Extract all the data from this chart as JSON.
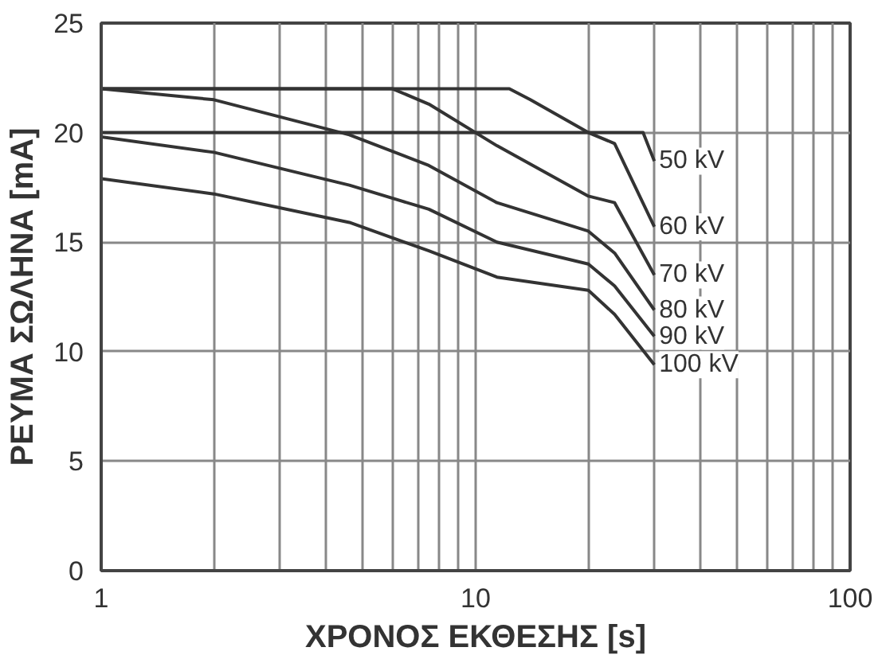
{
  "chart_data": {
    "type": "line",
    "xlabel": "ΧΡΟΝΟΣ ΕΚΘΕΣΗΣ [s]",
    "ylabel": "ΡΕΥΜΑ ΣΩΛΗΝΑ [mA]",
    "log": "x",
    "grid": true,
    "xlim": [
      1,
      100
    ],
    "ylim": [
      0,
      25
    ],
    "xticks": [
      1,
      {
        "value": 2,
        "label": null
      },
      {
        "value": 3,
        "label": null
      },
      {
        "value": 4,
        "label": null
      },
      {
        "value": 5,
        "label": null
      },
      {
        "value": 6,
        "label": null
      },
      {
        "value": 7,
        "label": null
      },
      {
        "value": 8,
        "label": null
      },
      {
        "value": 9,
        "label": null
      },
      10,
      {
        "value": 20,
        "label": null
      },
      {
        "value": 30,
        "label": null
      },
      {
        "value": 40,
        "label": null
      },
      {
        "value": 50,
        "label": null
      },
      {
        "value": 60,
        "label": null
      },
      {
        "value": 70,
        "label": null
      },
      {
        "value": 80,
        "label": null
      },
      {
        "value": 90,
        "label": null
      },
      100
    ],
    "yticks": [
      0,
      5,
      10,
      15,
      20,
      25
    ],
    "series": [
      {
        "name": "50 kV",
        "color": "#333333",
        "x": [
          1,
          28,
          30
        ],
        "values": [
          20,
          20,
          18.7
        ]
      },
      {
        "name": "60 kV",
        "color": "#333333",
        "x": [
          1,
          12.3,
          14,
          20,
          23.5,
          30
        ],
        "values": [
          22,
          22,
          21.5,
          20.0,
          19.5,
          15.7
        ]
      },
      {
        "name": "70 kV",
        "color": "#333333",
        "x": [
          1,
          6,
          7.5,
          11.4,
          20,
          23.5,
          30
        ],
        "values": [
          22,
          22,
          21.3,
          19.4,
          17.1,
          16.8,
          13.5
        ]
      },
      {
        "name": "80 kV",
        "color": "#333333",
        "x": [
          1,
          2,
          4.6,
          7.5,
          11.4,
          20,
          23.5,
          30
        ],
        "values": [
          22,
          21.5,
          19.9,
          18.5,
          16.8,
          15.5,
          14.5,
          11.9
        ]
      },
      {
        "name": "90 kV",
        "color": "#333333",
        "x": [
          1,
          2,
          4.6,
          7.5,
          11.4,
          20,
          23.5,
          30
        ],
        "values": [
          19.8,
          19.1,
          17.6,
          16.5,
          15.0,
          14.0,
          13.0,
          10.7
        ]
      },
      {
        "name": "100 kV",
        "color": "#333333",
        "x": [
          1,
          2,
          4.6,
          7.5,
          11.4,
          20,
          23.5,
          30
        ],
        "values": [
          17.9,
          17.2,
          15.9,
          14.6,
          13.4,
          12.8,
          11.7,
          9.4
        ]
      }
    ]
  }
}
